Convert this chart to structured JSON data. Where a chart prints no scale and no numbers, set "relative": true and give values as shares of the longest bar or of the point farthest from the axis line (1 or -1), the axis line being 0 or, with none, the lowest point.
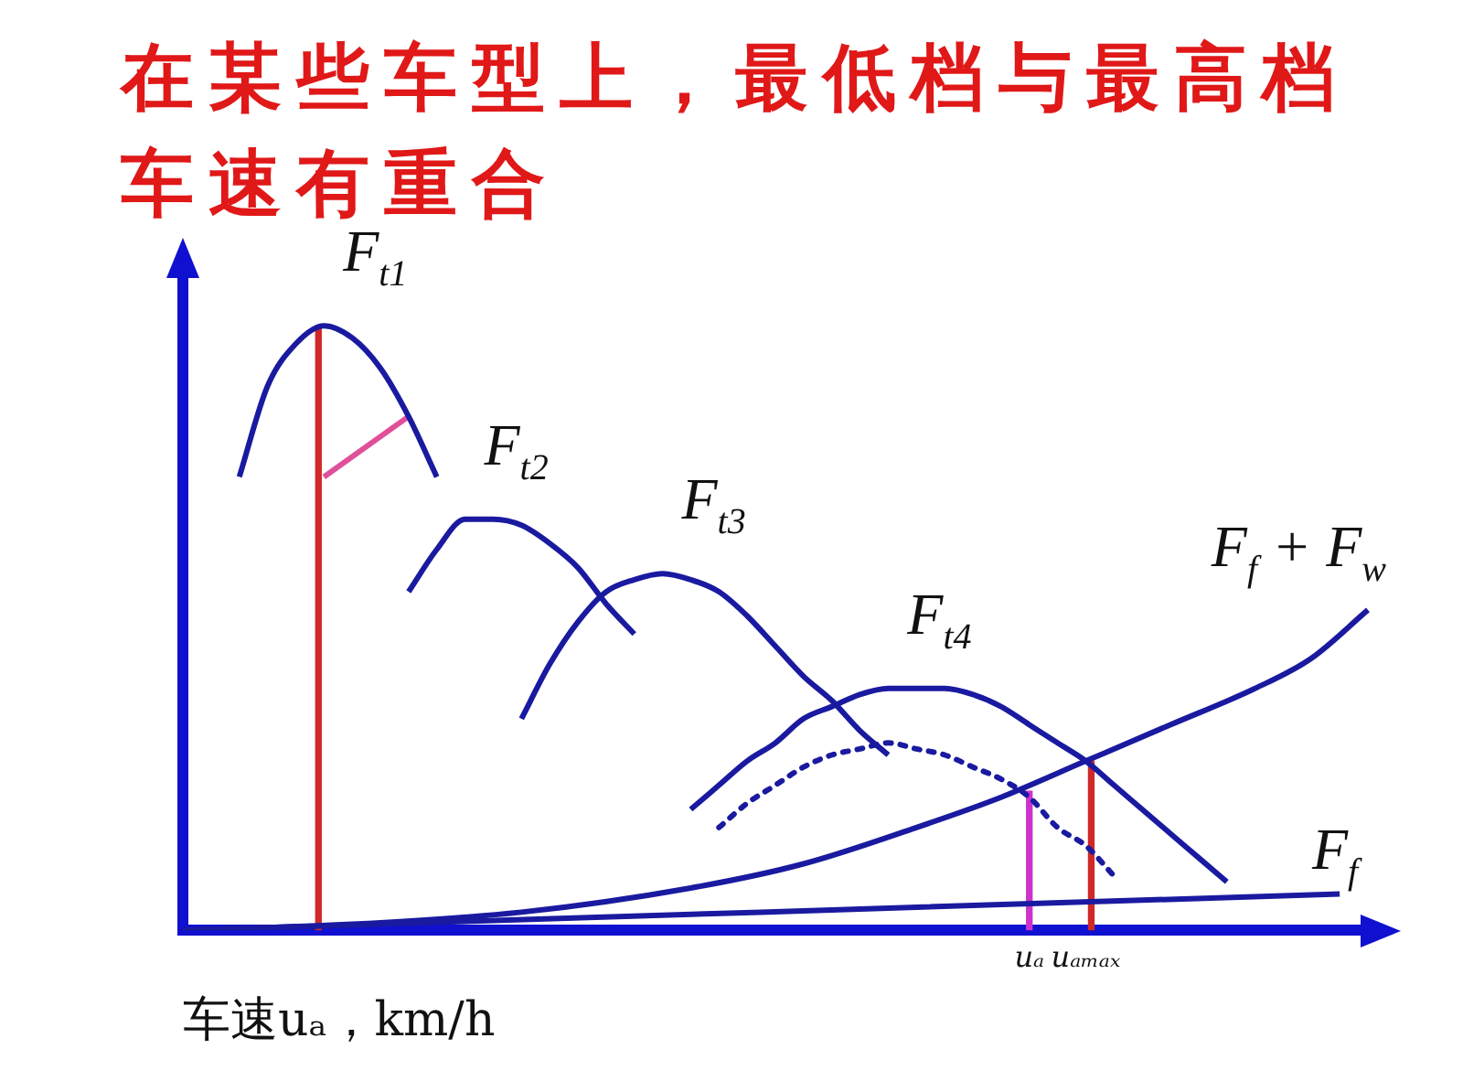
{
  "chart_data": {
    "type": "line",
    "title": "在某些车型上，最低档与最高档车速有重合",
    "xlabel": "车速uₐ，km/h",
    "relative": true,
    "grid": false,
    "legend": false,
    "marker": "none",
    "categories": [
      null,
      null,
      null,
      null,
      null,
      null,
      null,
      null,
      null,
      null,
      null,
      null,
      null,
      null,
      null,
      null,
      null,
      null,
      null,
      null,
      null,
      null,
      null,
      null,
      null,
      null,
      null,
      null,
      null,
      null,
      "uₐ",
      null,
      "uₐₘₐₓ",
      null,
      null,
      null,
      null,
      null,
      null,
      null,
      null,
      null,
      null
    ],
    "series": [
      {
        "name": "F$_{t1}$",
        "color": "#1a1aa0",
        "values": [
          null,
          null,
          0.75,
          0.9,
          0.97,
          1,
          0.98,
          0.93,
          0.85,
          0.75,
          null,
          null,
          null,
          null,
          null,
          null,
          null,
          null,
          null,
          null,
          null,
          null,
          null,
          null,
          null,
          null,
          null,
          null,
          null,
          null,
          null,
          null,
          null,
          null,
          null,
          null,
          null,
          null,
          null,
          null,
          null,
          null,
          null
        ]
      },
      {
        "name": "F$_{t2}$",
        "color": "#1a1aa0",
        "values": [
          null,
          null,
          null,
          null,
          null,
          null,
          null,
          null,
          0.56,
          0.63,
          0.68,
          0.68,
          0.67,
          0.64,
          0.6,
          0.54,
          0.49,
          null,
          null,
          null,
          null,
          null,
          null,
          null,
          null,
          null,
          null,
          null,
          null,
          null,
          null,
          null,
          null,
          null,
          null,
          null,
          null,
          null,
          null,
          null,
          null,
          null,
          null
        ]
      },
      {
        "name": "F$_{t3}$",
        "color": "#1a1aa0",
        "values": [
          null,
          null,
          null,
          null,
          null,
          null,
          null,
          null,
          null,
          null,
          null,
          null,
          0.35,
          0.44,
          0.51,
          0.56,
          0.58,
          0.59,
          0.58,
          0.56,
          0.52,
          0.47,
          0.42,
          0.38,
          0.33,
          0.29,
          null,
          null,
          null,
          null,
          null,
          null,
          null,
          null,
          null,
          null,
          null,
          null,
          null,
          null,
          null,
          null,
          null
        ]
      },
      {
        "name": "F$_{t4}$",
        "color": "#1a1aa0",
        "values": [
          null,
          null,
          null,
          null,
          null,
          null,
          null,
          null,
          null,
          null,
          null,
          null,
          null,
          null,
          null,
          null,
          null,
          null,
          0.2,
          0.24,
          0.28,
          0.31,
          0.35,
          0.37,
          0.39,
          0.4,
          0.4,
          0.4,
          0.39,
          0.37,
          0.34,
          0.31,
          0.28,
          0.24,
          0.2,
          0.16,
          0.12,
          0.08,
          null,
          null,
          null,
          null,
          null
        ]
      },
      {
        "color": "#1a1aa0",
        "line_style": "dotted",
        "values": [
          null,
          null,
          null,
          null,
          null,
          null,
          null,
          null,
          null,
          null,
          null,
          null,
          null,
          null,
          null,
          null,
          null,
          null,
          null,
          0.17,
          0.21,
          0.24,
          0.27,
          0.29,
          0.3,
          0.31,
          0.3,
          0.29,
          0.27,
          0.25,
          0.22,
          0.17,
          0.14,
          0.09,
          null,
          null,
          null,
          null,
          null,
          null,
          null,
          null,
          null
        ]
      },
      {
        "name": "F$_{f}$ + F$_{w}$",
        "color": "#1a1aa0",
        "values": [
          0,
          null,
          null,
          null,
          null,
          null,
          0.01,
          null,
          null,
          null,
          null,
          null,
          0.03,
          null,
          null,
          null,
          null,
          null,
          0.07,
          null,
          null,
          null,
          0.11,
          null,
          null,
          null,
          0.17,
          null,
          null,
          0.22,
          null,
          null,
          0.28,
          null,
          null,
          0.34,
          null,
          null,
          0.4,
          null,
          0.45,
          null,
          0.53
        ]
      },
      {
        "name": "F$_{f}$",
        "color": "#1a1aa0",
        "values": [
          0,
          null,
          null,
          null,
          null,
          null,
          null,
          null,
          null,
          null,
          null,
          null,
          null,
          null,
          null,
          null,
          null,
          null,
          null,
          null,
          null,
          null,
          null,
          null,
          null,
          null,
          null,
          null,
          null,
          null,
          null,
          null,
          null,
          null,
          null,
          null,
          null,
          null,
          null,
          null,
          null,
          0.06,
          null
        ]
      },
      {
        "type": "bar",
        "color": "#d02828",
        "values": [
          null,
          null,
          null,
          null,
          null,
          1,
          null,
          null,
          null,
          null,
          null,
          null,
          null,
          null,
          null,
          null,
          null,
          null,
          null,
          null,
          null,
          null,
          null,
          null,
          null,
          null,
          null,
          null,
          null,
          null,
          null,
          null,
          null,
          null,
          null,
          null,
          null,
          null,
          null,
          null,
          null,
          null,
          null
        ]
      },
      {
        "color": "#e0509a",
        "values": [
          null,
          null,
          null,
          null,
          null,
          0.75,
          null,
          null,
          0.85,
          null,
          null,
          null,
          null,
          null,
          null,
          null,
          null,
          null,
          null,
          null,
          null,
          null,
          null,
          null,
          null,
          null,
          null,
          null,
          null,
          null,
          null,
          null,
          null,
          null,
          null,
          null,
          null,
          null,
          null,
          null,
          null,
          null,
          null
        ]
      },
      {
        "type": "bar",
        "color": "#cc33cc",
        "values": [
          null,
          null,
          null,
          null,
          null,
          null,
          null,
          null,
          null,
          null,
          null,
          null,
          null,
          null,
          null,
          null,
          null,
          null,
          null,
          null,
          null,
          null,
          null,
          null,
          null,
          null,
          null,
          null,
          null,
          null,
          0.23,
          null,
          null,
          null,
          null,
          null,
          null,
          null,
          null,
          null,
          null,
          null,
          null
        ]
      },
      {
        "type": "bar",
        "color": "#d02828",
        "values": [
          null,
          null,
          null,
          null,
          null,
          null,
          null,
          null,
          null,
          null,
          null,
          null,
          null,
          null,
          null,
          null,
          null,
          null,
          null,
          null,
          null,
          null,
          null,
          null,
          null,
          null,
          null,
          null,
          null,
          null,
          null,
          null,
          0.28,
          null,
          null,
          null,
          null,
          null,
          null,
          null,
          null,
          null,
          null
        ]
      }
    ]
  }
}
